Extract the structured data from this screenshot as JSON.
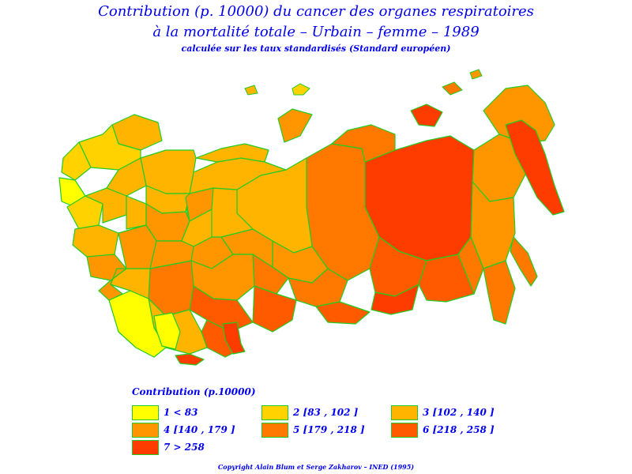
{
  "title": {
    "line1": "Contribution (p. 10000) du cancer des organes respiratoires",
    "line2": "à la mortalité totale – Urbain – femme – 1989",
    "line3": "calculée sur les taux standardisés (Standard européen)"
  },
  "colors": {
    "border": "#22cc22",
    "text": "#0000ee",
    "classes": [
      "#ffff00",
      "#ffd200",
      "#ffb400",
      "#ff9600",
      "#ff7800",
      "#ff5a00",
      "#ff3c00"
    ]
  },
  "legend": {
    "title": "Contribution (p.10000)",
    "items": [
      {
        "label": "1  <  83",
        "color": "#ffff00"
      },
      {
        "label": "2 [83 ,  102 ]",
        "color": "#ffd200"
      },
      {
        "label": "3 [102 ,  140 ]",
        "color": "#ffb400"
      },
      {
        "label": "4 [140 ,  179 ]",
        "color": "#ff9600"
      },
      {
        "label": "5 [179 ,  218 ]",
        "color": "#ff7800"
      },
      {
        "label": "6 [218 ,  258 ]",
        "color": "#ff5a00"
      },
      {
        "label": "7  >  258",
        "color": "#ff3c00"
      }
    ]
  },
  "copyright": "Copyright Alain Blum et Serge Zakharov – INED (1995)"
}
